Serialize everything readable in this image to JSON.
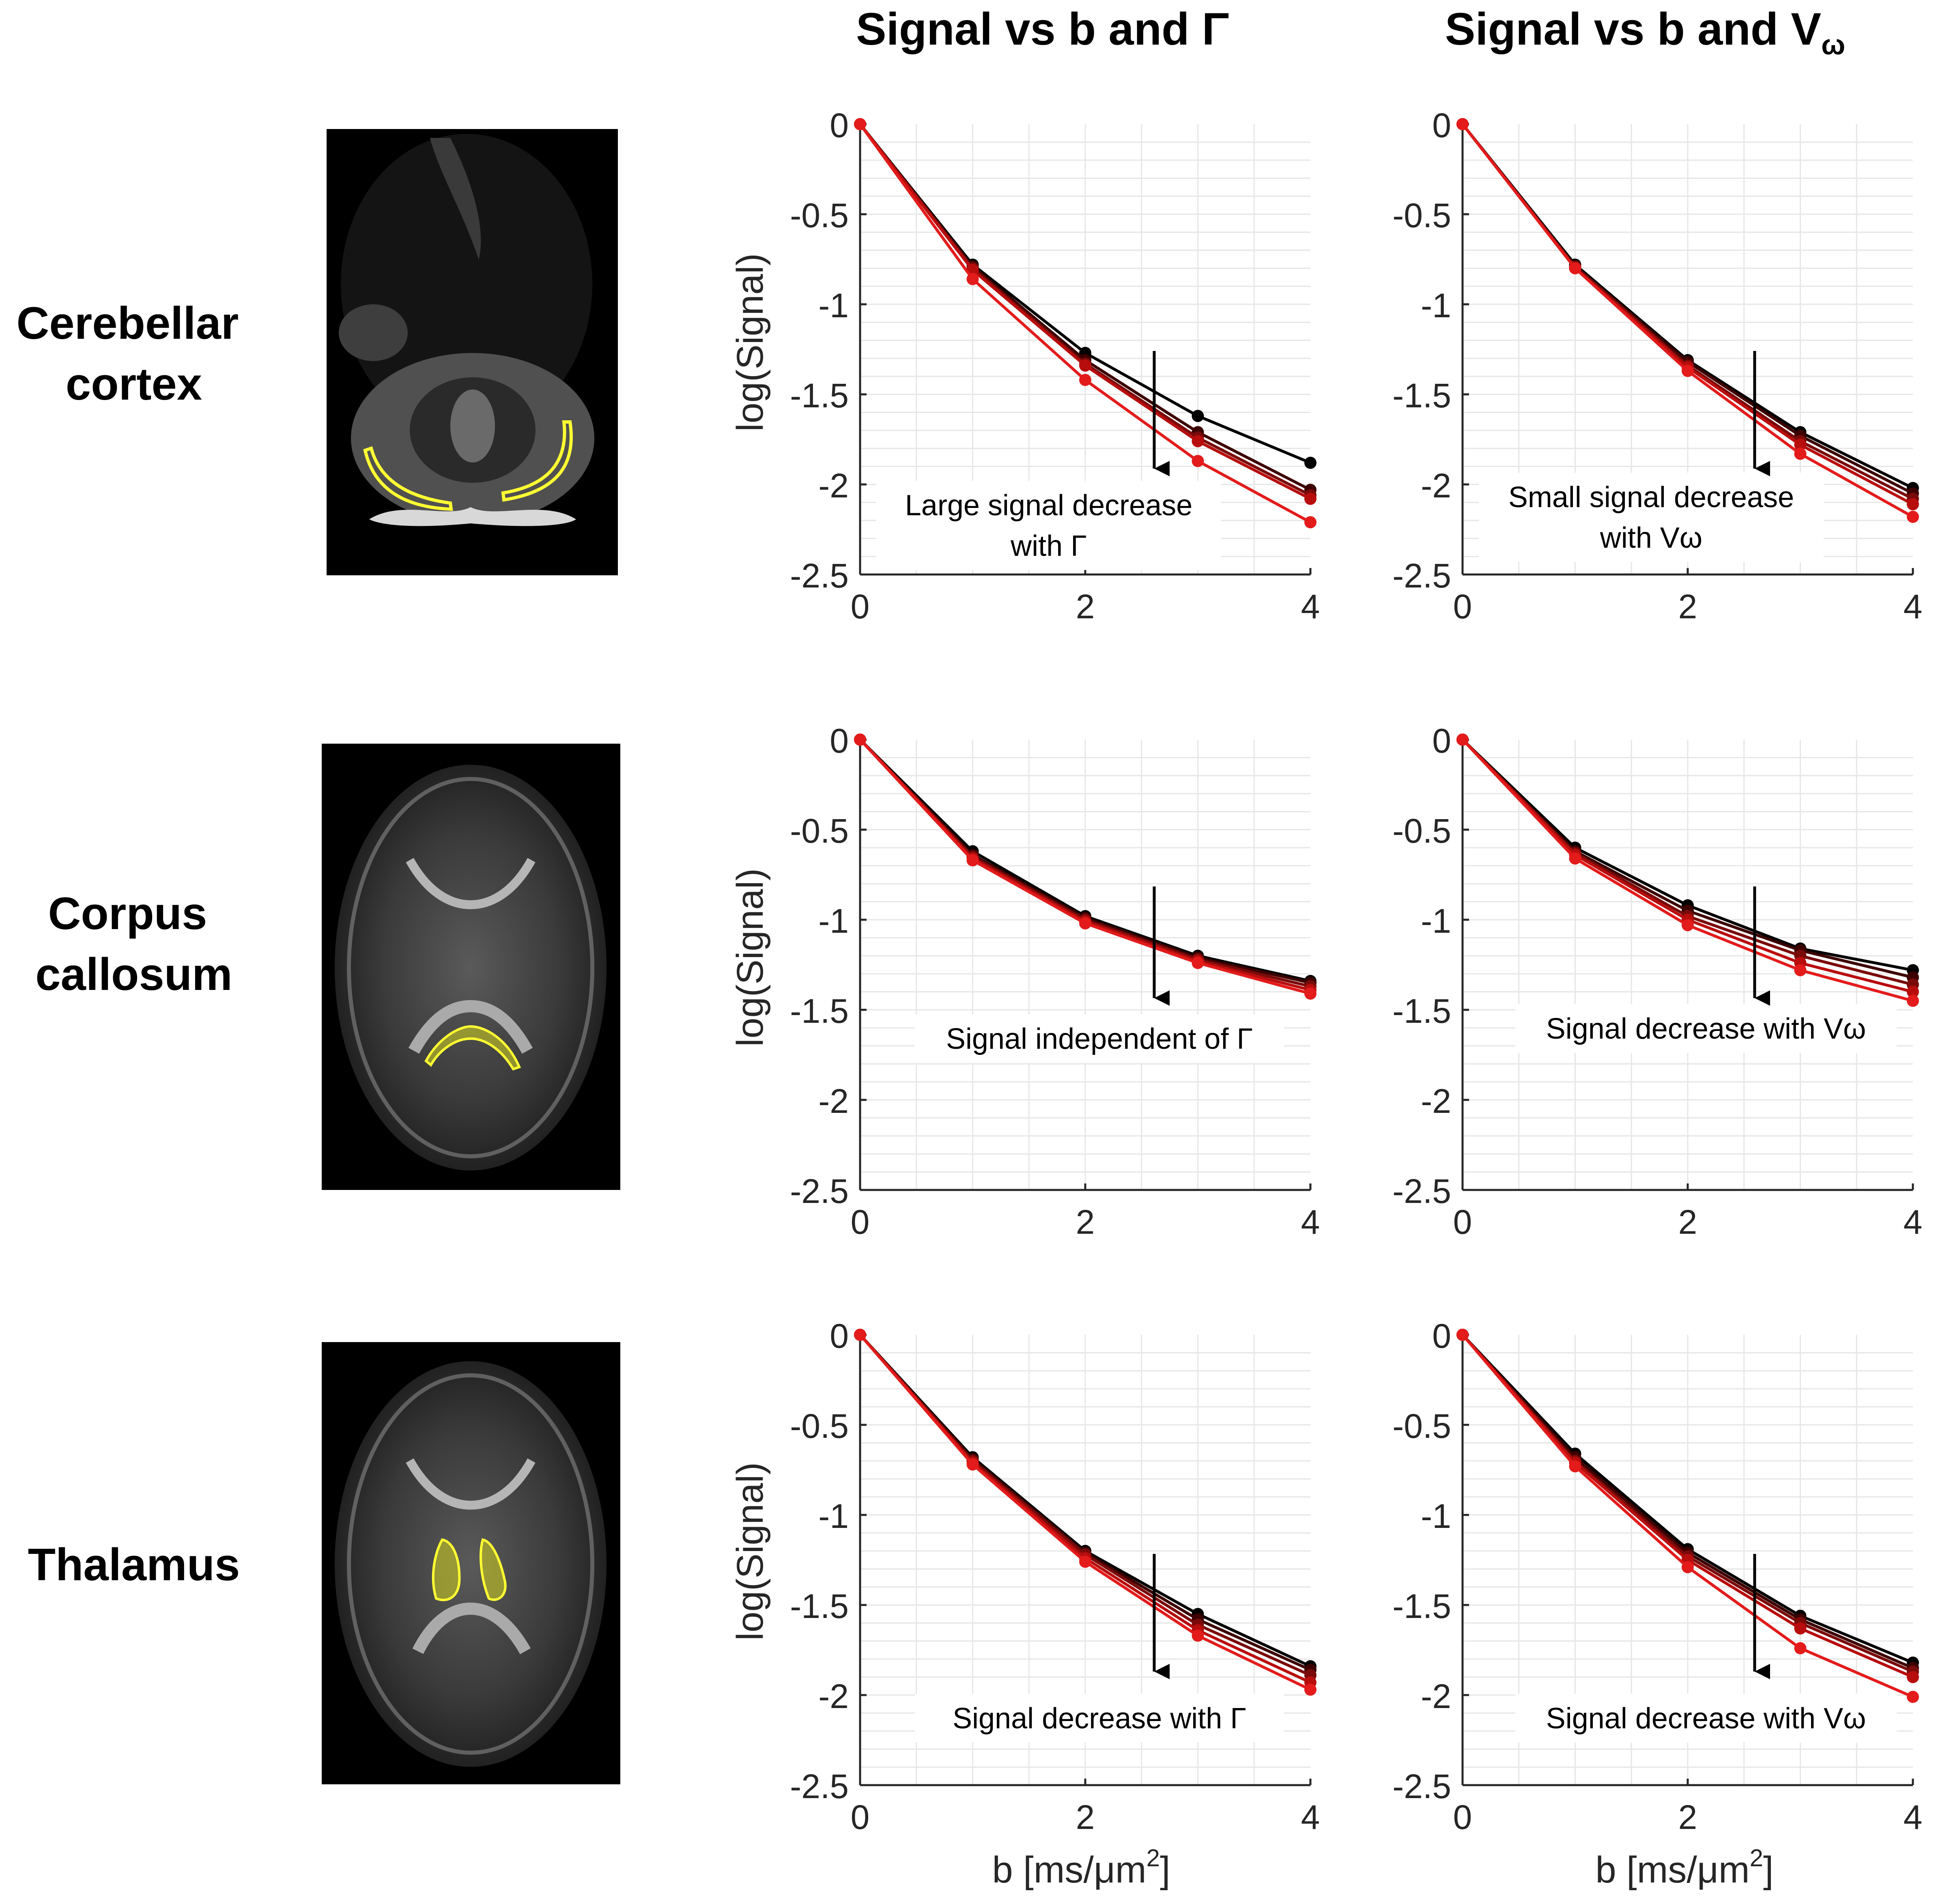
{
  "column_titles": {
    "gamma": "Signal vs b and Γ",
    "vomega": {
      "main": "Signal vs b and V",
      "sub": "ω"
    }
  },
  "rows": [
    {
      "label_lines": [
        "Cerebellar",
        "cortex"
      ]
    },
    {
      "label_lines": [
        "Corpus",
        "callosum"
      ]
    },
    {
      "label_lines": [
        "Thalamus"
      ]
    }
  ],
  "axis": {
    "ylabel": "log(Signal)",
    "xlabel": "b [ms/μm",
    "xlabel_sup": "2",
    "xlabel_end": "]",
    "xticks": [
      "0",
      "2",
      "4"
    ],
    "yticks": [
      "0",
      "-0.5",
      "-1",
      "-1.5",
      "-2",
      "-2.5"
    ]
  },
  "colors": {
    "series": [
      "#000000",
      "#3d0000",
      "#7a0a0a",
      "#b80d0d",
      "#e31b1b"
    ],
    "roi_outline": "#ffff33",
    "grid": "#e6e6e6",
    "axis": "#262626"
  },
  "chart_data": [
    {
      "type": "line",
      "row": 0,
      "col": 0,
      "xlim": [
        0,
        4
      ],
      "ylim": [
        -2.5,
        0
      ],
      "xlabel": "",
      "ylabel": "log(Signal)",
      "annotation": [
        "Large signal decrease",
        "with Γ"
      ],
      "x": [
        0,
        1,
        2,
        3,
        4
      ],
      "series": [
        {
          "name": "1",
          "values": [
            0,
            -0.78,
            -1.27,
            -1.62,
            -1.88
          ]
        },
        {
          "name": "2",
          "values": [
            0,
            -0.79,
            -1.31,
            -1.71,
            -2.03
          ]
        },
        {
          "name": "3",
          "values": [
            0,
            -0.8,
            -1.33,
            -1.74,
            -2.06
          ]
        },
        {
          "name": "4",
          "values": [
            0,
            -0.81,
            -1.34,
            -1.76,
            -2.08
          ]
        },
        {
          "name": "5",
          "values": [
            0,
            -0.86,
            -1.42,
            -1.87,
            -2.21
          ]
        }
      ]
    },
    {
      "type": "line",
      "row": 0,
      "col": 1,
      "xlim": [
        0,
        4
      ],
      "ylim": [
        -2.5,
        0
      ],
      "xlabel": "",
      "ylabel": "",
      "annotation": [
        "Small signal decrease",
        "with Vω"
      ],
      "x": [
        0,
        1,
        2,
        3,
        4
      ],
      "series": [
        {
          "name": "1",
          "values": [
            0,
            -0.78,
            -1.31,
            -1.71,
            -2.02
          ]
        },
        {
          "name": "2",
          "values": [
            0,
            -0.79,
            -1.32,
            -1.73,
            -2.05
          ]
        },
        {
          "name": "3",
          "values": [
            0,
            -0.79,
            -1.34,
            -1.76,
            -2.08
          ]
        },
        {
          "name": "4",
          "values": [
            0,
            -0.8,
            -1.35,
            -1.78,
            -2.11
          ]
        },
        {
          "name": "5",
          "values": [
            0,
            -0.8,
            -1.37,
            -1.83,
            -2.18
          ]
        }
      ]
    },
    {
      "type": "line",
      "row": 1,
      "col": 0,
      "xlim": [
        0,
        4
      ],
      "ylim": [
        -2.5,
        0
      ],
      "xlabel": "",
      "ylabel": "log(Signal)",
      "annotation": [
        "Signal independent of Γ"
      ],
      "x": [
        0,
        1,
        2,
        3,
        4
      ],
      "series": [
        {
          "name": "1",
          "values": [
            0,
            -0.62,
            -0.98,
            -1.2,
            -1.34
          ]
        },
        {
          "name": "2",
          "values": [
            0,
            -0.64,
            -0.99,
            -1.21,
            -1.35
          ]
        },
        {
          "name": "3",
          "values": [
            0,
            -0.65,
            -1.0,
            -1.22,
            -1.37
          ]
        },
        {
          "name": "4",
          "values": [
            0,
            -0.66,
            -1.01,
            -1.23,
            -1.39
          ]
        },
        {
          "name": "5",
          "values": [
            0,
            -0.67,
            -1.02,
            -1.24,
            -1.41
          ]
        }
      ]
    },
    {
      "type": "line",
      "row": 1,
      "col": 1,
      "xlim": [
        0,
        4
      ],
      "ylim": [
        -2.5,
        0
      ],
      "xlabel": "",
      "ylabel": "",
      "annotation": [
        "Signal decrease with Vω"
      ],
      "x": [
        0,
        1,
        2,
        3,
        4
      ],
      "series": [
        {
          "name": "1",
          "values": [
            0,
            -0.6,
            -0.92,
            -1.16,
            -1.28
          ]
        },
        {
          "name": "2",
          "values": [
            0,
            -0.62,
            -0.95,
            -1.17,
            -1.32
          ]
        },
        {
          "name": "3",
          "values": [
            0,
            -0.63,
            -0.98,
            -1.2,
            -1.36
          ]
        },
        {
          "name": "4",
          "values": [
            0,
            -0.64,
            -1.0,
            -1.24,
            -1.4
          ]
        },
        {
          "name": "5",
          "values": [
            0,
            -0.66,
            -1.03,
            -1.28,
            -1.45
          ]
        }
      ]
    },
    {
      "type": "line",
      "row": 2,
      "col": 0,
      "xlim": [
        0,
        4
      ],
      "ylim": [
        -2.5,
        0
      ],
      "xlabel": "b [ms/μm2]",
      "ylabel": "log(Signal)",
      "annotation": [
        "Signal decrease with Γ"
      ],
      "x": [
        0,
        1,
        2,
        3,
        4
      ],
      "series": [
        {
          "name": "1",
          "values": [
            0,
            -0.68,
            -1.2,
            -1.55,
            -1.84
          ]
        },
        {
          "name": "2",
          "values": [
            0,
            -0.69,
            -1.21,
            -1.58,
            -1.86
          ]
        },
        {
          "name": "3",
          "values": [
            0,
            -0.7,
            -1.22,
            -1.61,
            -1.89
          ]
        },
        {
          "name": "4",
          "values": [
            0,
            -0.71,
            -1.24,
            -1.64,
            -1.93
          ]
        },
        {
          "name": "5",
          "values": [
            0,
            -0.72,
            -1.26,
            -1.67,
            -1.97
          ]
        }
      ]
    },
    {
      "type": "line",
      "row": 2,
      "col": 1,
      "xlim": [
        0,
        4
      ],
      "ylim": [
        -2.5,
        0
      ],
      "xlabel": "b [ms/μm2]",
      "ylabel": "",
      "annotation": [
        "Signal decrease with Vω"
      ],
      "x": [
        0,
        1,
        2,
        3,
        4
      ],
      "series": [
        {
          "name": "1",
          "values": [
            0,
            -0.66,
            -1.19,
            -1.56,
            -1.82
          ]
        },
        {
          "name": "2",
          "values": [
            0,
            -0.68,
            -1.21,
            -1.58,
            -1.85
          ]
        },
        {
          "name": "3",
          "values": [
            0,
            -0.7,
            -1.23,
            -1.6,
            -1.87
          ]
        },
        {
          "name": "4",
          "values": [
            0,
            -0.71,
            -1.25,
            -1.63,
            -1.9
          ]
        },
        {
          "name": "5",
          "values": [
            0,
            -0.73,
            -1.29,
            -1.74,
            -2.01
          ]
        }
      ]
    }
  ]
}
